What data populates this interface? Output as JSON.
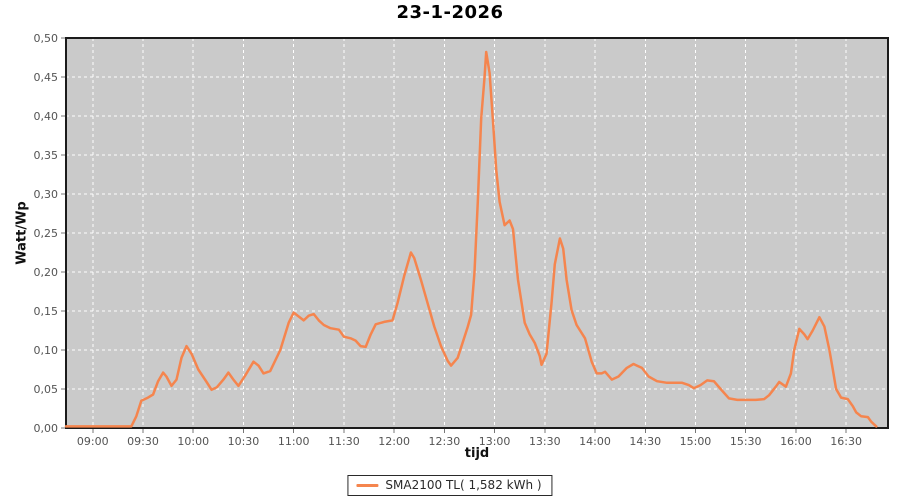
{
  "header": {
    "title": "23-1-2026"
  },
  "colors": {
    "series": "#F5854E",
    "plot_bg": "#CACACA",
    "grid": "#FFFFFF",
    "axis_border": "#1B1B1B",
    "tick_mark": "#777777",
    "tick_text": "#545454",
    "page_bg": "#FFFFFF"
  },
  "legend": {
    "label": "SMA2100 TL( 1,582 kWh )"
  },
  "chart_data": {
    "type": "line",
    "title": "23-1-2026",
    "xlabel": "tijd",
    "ylabel": "Watt/Wp",
    "grid": true,
    "legend_position": "bottom",
    "x_range": [
      "08:44",
      "16:55"
    ],
    "ylim": [
      0,
      0.5
    ],
    "x_ticks": [
      "09:00",
      "09:30",
      "10:00",
      "10:30",
      "11:00",
      "11:30",
      "12:00",
      "12:30",
      "13:00",
      "13:30",
      "14:00",
      "14:30",
      "15:00",
      "15:30",
      "16:00",
      "16:30"
    ],
    "y_ticks": [
      {
        "v": 0.0,
        "label": "0,00"
      },
      {
        "v": 0.05,
        "label": "0,05"
      },
      {
        "v": 0.1,
        "label": "0,10"
      },
      {
        "v": 0.15,
        "label": "0,15"
      },
      {
        "v": 0.2,
        "label": "0,20"
      },
      {
        "v": 0.25,
        "label": "0,25"
      },
      {
        "v": 0.3,
        "label": "0,30"
      },
      {
        "v": 0.35,
        "label": "0,35"
      },
      {
        "v": 0.4,
        "label": "0,40"
      },
      {
        "v": 0.45,
        "label": "0,45"
      },
      {
        "v": 0.5,
        "label": "0,50"
      }
    ],
    "series": [
      {
        "name": "SMA2100 TL( 1,582 kWh )",
        "color": "#F5854E",
        "points": [
          [
            "08:44",
            0.002
          ],
          [
            "09:05",
            0.002
          ],
          [
            "09:23",
            0.002
          ],
          [
            "09:26",
            0.015
          ],
          [
            "09:29",
            0.035
          ],
          [
            "09:33",
            0.039
          ],
          [
            "09:36",
            0.043
          ],
          [
            "09:39",
            0.06
          ],
          [
            "09:42",
            0.071
          ],
          [
            "09:44",
            0.066
          ],
          [
            "09:47",
            0.054
          ],
          [
            "09:50",
            0.062
          ],
          [
            "09:53",
            0.09
          ],
          [
            "09:56",
            0.105
          ],
          [
            "09:59",
            0.095
          ],
          [
            "10:03",
            0.075
          ],
          [
            "10:08",
            0.059
          ],
          [
            "10:11",
            0.049
          ],
          [
            "10:14",
            0.052
          ],
          [
            "10:18",
            0.062
          ],
          [
            "10:21",
            0.071
          ],
          [
            "10:24",
            0.062
          ],
          [
            "10:27",
            0.054
          ],
          [
            "10:31",
            0.067
          ],
          [
            "10:36",
            0.085
          ],
          [
            "10:39",
            0.08
          ],
          [
            "10:42",
            0.07
          ],
          [
            "10:46",
            0.073
          ],
          [
            "10:52",
            0.1
          ],
          [
            "10:57",
            0.135
          ],
          [
            "11:00",
            0.148
          ],
          [
            "11:03",
            0.143
          ],
          [
            "11:06",
            0.138
          ],
          [
            "11:09",
            0.144
          ],
          [
            "11:12",
            0.146
          ],
          [
            "11:15",
            0.138
          ],
          [
            "11:18",
            0.132
          ],
          [
            "11:22",
            0.128
          ],
          [
            "11:27",
            0.126
          ],
          [
            "11:30",
            0.117
          ],
          [
            "11:34",
            0.115
          ],
          [
            "11:37",
            0.112
          ],
          [
            "11:40",
            0.105
          ],
          [
            "11:43",
            0.104
          ],
          [
            "11:46",
            0.12
          ],
          [
            "11:49",
            0.133
          ],
          [
            "11:54",
            0.136
          ],
          [
            "11:59",
            0.138
          ],
          [
            "12:02",
            0.16
          ],
          [
            "12:06",
            0.195
          ],
          [
            "12:10",
            0.225
          ],
          [
            "12:12",
            0.218
          ],
          [
            "12:16",
            0.19
          ],
          [
            "12:20",
            0.16
          ],
          [
            "12:24",
            0.13
          ],
          [
            "12:28",
            0.105
          ],
          [
            "12:32",
            0.086
          ],
          [
            "12:34",
            0.08
          ],
          [
            "12:38",
            0.09
          ],
          [
            "12:41",
            0.11
          ],
          [
            "12:44",
            0.13
          ],
          [
            "12:46",
            0.145
          ],
          [
            "12:48",
            0.2
          ],
          [
            "12:50",
            0.29
          ],
          [
            "12:52",
            0.397
          ],
          [
            "12:54",
            0.449
          ],
          [
            "12:55",
            0.482
          ],
          [
            "12:57",
            0.455
          ],
          [
            "12:59",
            0.395
          ],
          [
            "13:01",
            0.33
          ],
          [
            "13:03",
            0.29
          ],
          [
            "13:06",
            0.26
          ],
          [
            "13:09",
            0.266
          ],
          [
            "13:11",
            0.255
          ],
          [
            "13:14",
            0.19
          ],
          [
            "13:18",
            0.135
          ],
          [
            "13:21",
            0.12
          ],
          [
            "13:24",
            0.109
          ],
          [
            "13:27",
            0.092
          ],
          [
            "13:28",
            0.081
          ],
          [
            "13:31",
            0.095
          ],
          [
            "13:34",
            0.16
          ],
          [
            "13:36",
            0.21
          ],
          [
            "13:39",
            0.243
          ],
          [
            "13:41",
            0.23
          ],
          [
            "13:43",
            0.19
          ],
          [
            "13:46",
            0.151
          ],
          [
            "13:49",
            0.132
          ],
          [
            "13:54",
            0.115
          ],
          [
            "13:58",
            0.085
          ],
          [
            "14:01",
            0.07
          ],
          [
            "14:04",
            0.07
          ],
          [
            "14:06",
            0.072
          ],
          [
            "14:10",
            0.062
          ],
          [
            "14:14",
            0.066
          ],
          [
            "14:19",
            0.077
          ],
          [
            "14:23",
            0.082
          ],
          [
            "14:28",
            0.077
          ],
          [
            "14:32",
            0.066
          ],
          [
            "14:37",
            0.06
          ],
          [
            "14:43",
            0.058
          ],
          [
            "14:52",
            0.058
          ],
          [
            "14:56",
            0.055
          ],
          [
            "14:59",
            0.051
          ],
          [
            "15:03",
            0.055
          ],
          [
            "15:07",
            0.061
          ],
          [
            "15:11",
            0.06
          ],
          [
            "15:15",
            0.05
          ],
          [
            "15:20",
            0.038
          ],
          [
            "15:25",
            0.036
          ],
          [
            "15:36",
            0.036
          ],
          [
            "15:41",
            0.037
          ],
          [
            "15:44",
            0.042
          ],
          [
            "15:48",
            0.053
          ],
          [
            "15:50",
            0.059
          ],
          [
            "15:54",
            0.053
          ],
          [
            "15:57",
            0.07
          ],
          [
            "15:59",
            0.1
          ],
          [
            "16:02",
            0.127
          ],
          [
            "16:05",
            0.12
          ],
          [
            "16:07",
            0.114
          ],
          [
            "16:10",
            0.125
          ],
          [
            "16:14",
            0.142
          ],
          [
            "16:17",
            0.13
          ],
          [
            "16:20",
            0.1
          ],
          [
            "16:22",
            0.075
          ],
          [
            "16:24",
            0.05
          ],
          [
            "16:27",
            0.039
          ],
          [
            "16:31",
            0.037
          ],
          [
            "16:34",
            0.028
          ],
          [
            "16:36",
            0.02
          ],
          [
            "16:39",
            0.015
          ],
          [
            "16:43",
            0.014
          ],
          [
            "16:45",
            0.008
          ],
          [
            "16:48",
            0.002
          ]
        ]
      }
    ]
  }
}
